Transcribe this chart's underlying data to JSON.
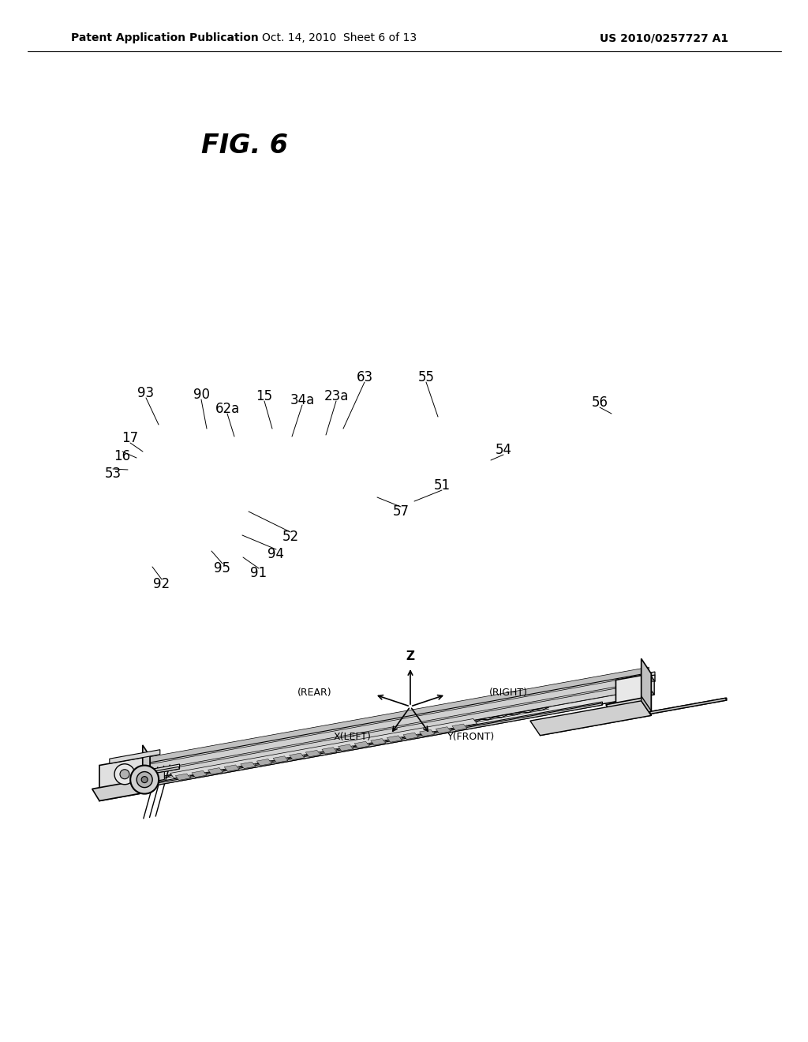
{
  "bg_color": "#ffffff",
  "header_left": "Patent Application Publication",
  "header_middle": "Oct. 14, 2010  Sheet 6 of 13",
  "header_right": "US 2010/0257727 A1",
  "fig_label": "FIG. 6",
  "font_size_header": 10,
  "font_size_fig": 24,
  "font_size_label": 12
}
